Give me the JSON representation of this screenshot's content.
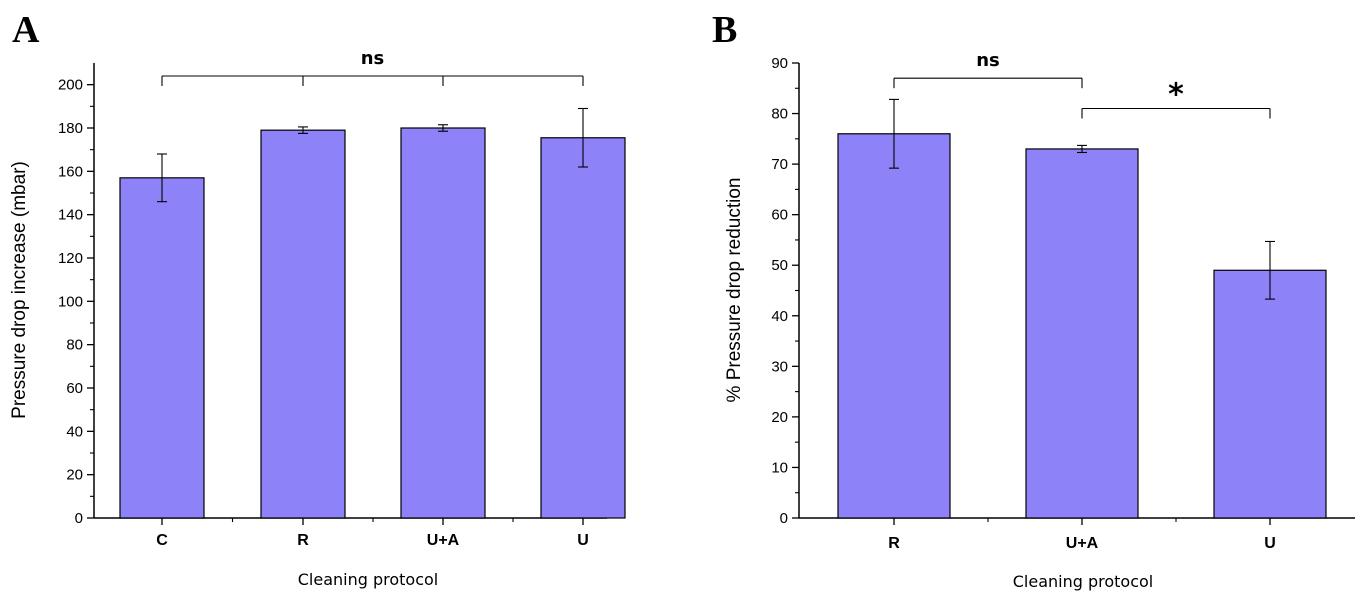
{
  "chart_data": [
    {
      "type": "bar",
      "panel": "A",
      "categories": [
        "C",
        "R",
        "U+A",
        "U"
      ],
      "values": [
        157,
        179,
        180,
        175.5
      ],
      "errors": [
        11,
        1.5,
        1.5,
        13.5
      ],
      "xlabel": "Cleaning protocol",
      "ylabel": "Pressure drop increase  (mbar)",
      "ylim": [
        0,
        210
      ],
      "yticks": [
        0,
        20,
        40,
        60,
        80,
        100,
        120,
        140,
        160,
        180,
        200
      ],
      "bar_color": "#8e82f8",
      "grid": false,
      "annotations": [
        {
          "label": "ns",
          "from": 0,
          "to": 3,
          "ticks": [
            0,
            1,
            2,
            3
          ],
          "y": 204
        }
      ]
    },
    {
      "type": "bar",
      "panel": "B",
      "categories": [
        "R",
        "U+A",
        "U"
      ],
      "values": [
        76,
        73,
        49
      ],
      "errors": [
        6.8,
        0.7,
        5.7
      ],
      "xlabel": "Cleaning protocol",
      "ylabel": "% Pressure drop reduction",
      "ylim": [
        0,
        90
      ],
      "yticks": [
        0,
        10,
        20,
        30,
        40,
        50,
        60,
        70,
        80,
        90
      ],
      "bar_color": "#8e82f8",
      "grid": false,
      "annotations": [
        {
          "label": "ns",
          "from": 0,
          "to": 1,
          "ticks": [
            0,
            1
          ],
          "y": 87
        },
        {
          "label": "*",
          "from": 1,
          "to": 2,
          "ticks": [
            1,
            2
          ],
          "y": 81
        }
      ]
    }
  ]
}
